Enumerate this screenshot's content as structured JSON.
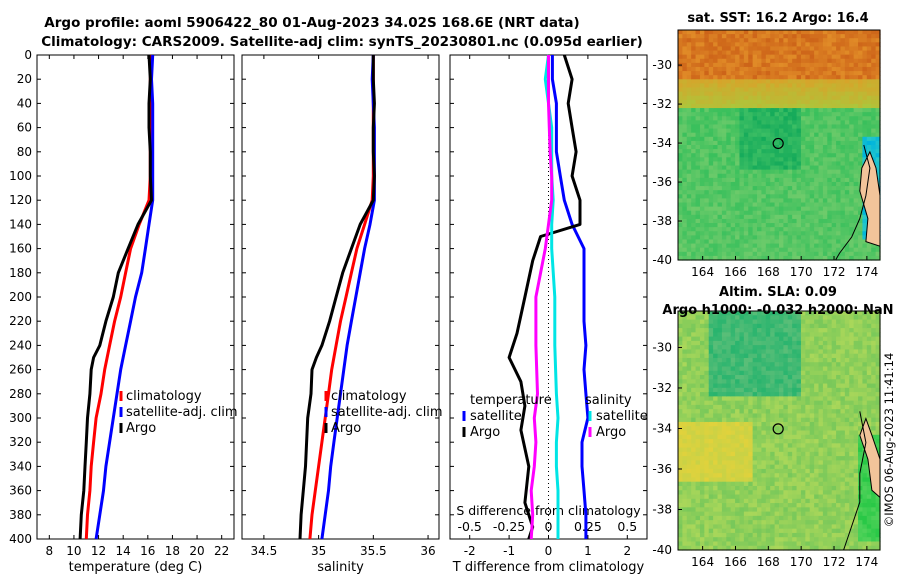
{
  "titles": {
    "line1": "Argo profile: aoml 5906422_80 01-Aug-2023 34.02S 168.6E (NRT data)",
    "line2": "Climatology: CARS2009. Satellite-adj clim: synTS_20230801.nc (0.095d earlier)"
  },
  "colors": {
    "climatology": "#ff0000",
    "satellite": "#0000ff",
    "argo": "#000000",
    "satellite_s": "#00e5e5",
    "argo_s": "#ff00ff"
  },
  "copyright": "©IMOS 06-Aug-2023 11:41:14",
  "depth_ticks": [
    "0",
    "20",
    "40",
    "60",
    "80",
    "100",
    "120",
    "140",
    "160",
    "180",
    "200",
    "220",
    "240",
    "260",
    "280",
    "300",
    "320",
    "340",
    "360",
    "380",
    "400"
  ],
  "chart_data": [
    {
      "type": "line",
      "name": "temperature-profile",
      "xlabel": "temperature (deg C)",
      "ylabel": "",
      "xlim": [
        7,
        23
      ],
      "ylim": [
        400,
        0
      ],
      "xticks": [
        "8",
        "10",
        "12",
        "14",
        "16",
        "18",
        "20",
        "22"
      ],
      "legend": [
        "climatology",
        "satellite-adj. clim",
        "Argo"
      ],
      "legend_position": "lower-right",
      "series": [
        {
          "name": "climatology",
          "color": "#ff0000",
          "points": [
            [
              16.3,
              0
            ],
            [
              16.2,
              20
            ],
            [
              16.2,
              40
            ],
            [
              16.2,
              60
            ],
            [
              16.2,
              80
            ],
            [
              16.2,
              100
            ],
            [
              16.1,
              120
            ],
            [
              15.3,
              140
            ],
            [
              14.6,
              160
            ],
            [
              14.2,
              180
            ],
            [
              13.8,
              200
            ],
            [
              13.3,
              220
            ],
            [
              12.9,
              240
            ],
            [
              12.5,
              260
            ],
            [
              12.2,
              280
            ],
            [
              11.8,
              300
            ],
            [
              11.6,
              320
            ],
            [
              11.4,
              340
            ],
            [
              11.3,
              360
            ],
            [
              11.1,
              380
            ],
            [
              11.0,
              400
            ]
          ]
        },
        {
          "name": "satellite-adj. clim",
          "color": "#0000ff",
          "points": [
            [
              16.4,
              0
            ],
            [
              16.3,
              20
            ],
            [
              16.4,
              40
            ],
            [
              16.4,
              60
            ],
            [
              16.4,
              80
            ],
            [
              16.4,
              100
            ],
            [
              16.4,
              120
            ],
            [
              16.1,
              140
            ],
            [
              15.8,
              160
            ],
            [
              15.5,
              180
            ],
            [
              15.0,
              200
            ],
            [
              14.6,
              220
            ],
            [
              14.2,
              240
            ],
            [
              13.8,
              260
            ],
            [
              13.5,
              280
            ],
            [
              13.2,
              300
            ],
            [
              12.9,
              320
            ],
            [
              12.6,
              340
            ],
            [
              12.4,
              360
            ],
            [
              12.1,
              380
            ],
            [
              11.8,
              400
            ]
          ]
        },
        {
          "name": "Argo",
          "color": "#000000",
          "points": [
            [
              16.1,
              0
            ],
            [
              16.2,
              20
            ],
            [
              16.1,
              40
            ],
            [
              16.1,
              60
            ],
            [
              16.2,
              80
            ],
            [
              16.2,
              100
            ],
            [
              16.3,
              120
            ],
            [
              15.2,
              140
            ],
            [
              14.4,
              160
            ],
            [
              13.6,
              180
            ],
            [
              13.2,
              200
            ],
            [
              12.6,
              220
            ],
            [
              12.1,
              240
            ],
            [
              11.6,
              250
            ],
            [
              11.4,
              260
            ],
            [
              11.3,
              280
            ],
            [
              11.1,
              300
            ],
            [
              11.0,
              320
            ],
            [
              10.9,
              340
            ],
            [
              10.8,
              360
            ],
            [
              10.6,
              380
            ],
            [
              10.5,
              400
            ]
          ]
        }
      ]
    },
    {
      "type": "line",
      "name": "salinity-profile",
      "xlabel": "salinity",
      "ylabel": "",
      "xlim": [
        34.3,
        36.1
      ],
      "ylim": [
        400,
        0
      ],
      "xticks": [
        "34.5",
        "35",
        "35.5",
        "36"
      ],
      "legend": [
        "climatology",
        "satellite-adj. clim",
        "Argo"
      ],
      "legend_position": "lower-right",
      "series": [
        {
          "name": "climatology",
          "color": "#ff0000",
          "points": [
            [
              35.5,
              0
            ],
            [
              35.5,
              20
            ],
            [
              35.5,
              40
            ],
            [
              35.5,
              60
            ],
            [
              35.5,
              80
            ],
            [
              35.5,
              100
            ],
            [
              35.49,
              120
            ],
            [
              35.42,
              140
            ],
            [
              35.35,
              160
            ],
            [
              35.3,
              180
            ],
            [
              35.25,
              200
            ],
            [
              35.2,
              220
            ],
            [
              35.16,
              240
            ],
            [
              35.12,
              260
            ],
            [
              35.09,
              280
            ],
            [
              35.06,
              300
            ],
            [
              35.03,
              320
            ],
            [
              35.0,
              340
            ],
            [
              34.97,
              360
            ],
            [
              34.94,
              380
            ],
            [
              34.92,
              400
            ]
          ]
        },
        {
          "name": "satellite-adj. clim",
          "color": "#0000ff",
          "points": [
            [
              35.5,
              0
            ],
            [
              35.49,
              20
            ],
            [
              35.5,
              40
            ],
            [
              35.51,
              60
            ],
            [
              35.51,
              80
            ],
            [
              35.51,
              100
            ],
            [
              35.51,
              120
            ],
            [
              35.47,
              140
            ],
            [
              35.42,
              160
            ],
            [
              35.38,
              180
            ],
            [
              35.34,
              200
            ],
            [
              35.3,
              220
            ],
            [
              35.26,
              240
            ],
            [
              35.23,
              260
            ],
            [
              35.2,
              280
            ],
            [
              35.17,
              300
            ],
            [
              35.14,
              320
            ],
            [
              35.11,
              340
            ],
            [
              35.09,
              360
            ],
            [
              35.06,
              380
            ],
            [
              35.03,
              400
            ]
          ]
        },
        {
          "name": "Argo",
          "color": "#000000",
          "points": [
            [
              35.5,
              0
            ],
            [
              35.5,
              20
            ],
            [
              35.51,
              40
            ],
            [
              35.5,
              60
            ],
            [
              35.5,
              80
            ],
            [
              35.51,
              100
            ],
            [
              35.5,
              120
            ],
            [
              35.38,
              140
            ],
            [
              35.3,
              160
            ],
            [
              35.22,
              180
            ],
            [
              35.16,
              200
            ],
            [
              35.1,
              220
            ],
            [
              35.03,
              240
            ],
            [
              34.98,
              250
            ],
            [
              34.94,
              260
            ],
            [
              34.93,
              280
            ],
            [
              34.9,
              300
            ],
            [
              34.89,
              320
            ],
            [
              34.88,
              340
            ],
            [
              34.86,
              360
            ],
            [
              34.84,
              380
            ],
            [
              34.83,
              400
            ]
          ]
        }
      ]
    },
    {
      "type": "line",
      "name": "difference-profile",
      "xlabel": "T difference from climatology",
      "top_axis_label": "S difference from climatology",
      "xlim": [
        -2.5,
        2.5
      ],
      "ylim": [
        400,
        0
      ],
      "xticks": [
        "-2",
        "-1",
        "0",
        "1",
        "2"
      ],
      "top_xticks": [
        "-0.5",
        "-0.25",
        "0",
        "0.25",
        "0.5"
      ],
      "legend_t_title": "temperature",
      "legend_s_title": "salinity",
      "legend_t": [
        "satellite",
        "Argo"
      ],
      "legend_s": [
        "satellite",
        "Argo"
      ],
      "series": [
        {
          "name": "T satellite",
          "color": "#0000ff",
          "points": [
            [
              0.1,
              0
            ],
            [
              0.1,
              20
            ],
            [
              0.2,
              40
            ],
            [
              0.2,
              60
            ],
            [
              0.2,
              80
            ],
            [
              0.3,
              100
            ],
            [
              0.4,
              120
            ],
            [
              0.6,
              140
            ],
            [
              0.9,
              160
            ],
            [
              0.9,
              180
            ],
            [
              0.9,
              200
            ],
            [
              0.9,
              220
            ],
            [
              0.95,
              240
            ],
            [
              0.9,
              260
            ],
            [
              0.95,
              280
            ],
            [
              1.0,
              300
            ],
            [
              0.85,
              320
            ],
            [
              0.85,
              340
            ],
            [
              0.9,
              360
            ],
            [
              0.95,
              380
            ],
            [
              0.95,
              400
            ]
          ]
        },
        {
          "name": "T Argo",
          "color": "#000000",
          "points": [
            [
              0.4,
              0
            ],
            [
              0.6,
              20
            ],
            [
              0.5,
              40
            ],
            [
              0.6,
              60
            ],
            [
              0.7,
              80
            ],
            [
              0.6,
              100
            ],
            [
              0.8,
              120
            ],
            [
              0.8,
              140
            ],
            [
              -0.2,
              150
            ],
            [
              -0.4,
              170
            ],
            [
              -0.6,
              200
            ],
            [
              -0.8,
              230
            ],
            [
              -1.0,
              250
            ],
            [
              -0.7,
              270
            ],
            [
              -0.6,
              290
            ],
            [
              -0.7,
              310
            ],
            [
              -0.5,
              340
            ],
            [
              -0.6,
              370
            ],
            [
              -0.4,
              390
            ],
            [
              -0.5,
              400
            ]
          ]
        },
        {
          "name": "S satellite",
          "color": "#00e5e5",
          "points": [
            [
              0.0,
              0
            ],
            [
              -0.02,
              20
            ],
            [
              0.0,
              40
            ],
            [
              0.02,
              60
            ],
            [
              0.02,
              80
            ],
            [
              0.02,
              100
            ],
            [
              0.03,
              120
            ],
            [
              0.02,
              140
            ],
            [
              0.02,
              160
            ],
            [
              0.04,
              200
            ],
            [
              0.04,
              240
            ],
            [
              0.05,
              280
            ],
            [
              0.06,
              300
            ],
            [
              0.05,
              320
            ],
            [
              0.05,
              340
            ],
            [
              0.06,
              360
            ],
            [
              0.06,
              380
            ],
            [
              0.06,
              400
            ]
          ]
        },
        {
          "name": "S Argo",
          "color": "#ff00ff",
          "points": [
            [
              0.0,
              0
            ],
            [
              0.0,
              40
            ],
            [
              0.01,
              80
            ],
            [
              0.02,
              100
            ],
            [
              0.02,
              120
            ],
            [
              0.0,
              140
            ],
            [
              -0.02,
              160
            ],
            [
              -0.05,
              180
            ],
            [
              -0.08,
              200
            ],
            [
              -0.08,
              240
            ],
            [
              -0.07,
              280
            ],
            [
              -0.09,
              300
            ],
            [
              -0.08,
              320
            ],
            [
              -0.09,
              340
            ],
            [
              -0.11,
              360
            ],
            [
              -0.1,
              380
            ],
            [
              -0.11,
              400
            ]
          ]
        }
      ]
    },
    {
      "type": "heatmap",
      "name": "sst-map",
      "title": "sat. SST: 16.2 Argo: 16.4",
      "xticks": [
        "164",
        "166",
        "168",
        "170",
        "172",
        "174"
      ],
      "yticks": [
        "-30",
        "-32",
        "-34",
        "-36",
        "-38",
        "-40"
      ],
      "xlim": [
        162.5,
        174.8
      ],
      "ylim": [
        -40,
        -28.2
      ],
      "argo_position": {
        "lon": 168.6,
        "lat": -34.02
      }
    },
    {
      "type": "heatmap",
      "name": "sla-map",
      "title": "Altim. SLA: 0.09",
      "subtitle": "Argo h1000: -0.032 h2000: NaN",
      "xticks": [
        "164",
        "166",
        "168",
        "170",
        "172",
        "174"
      ],
      "yticks": [
        "-30",
        "-32",
        "-34",
        "-36",
        "-38",
        "-40"
      ],
      "xlim": [
        162.5,
        174.8
      ],
      "ylim": [
        -40,
        -28.2
      ],
      "argo_position": {
        "lon": 168.6,
        "lat": -34.02
      }
    }
  ]
}
